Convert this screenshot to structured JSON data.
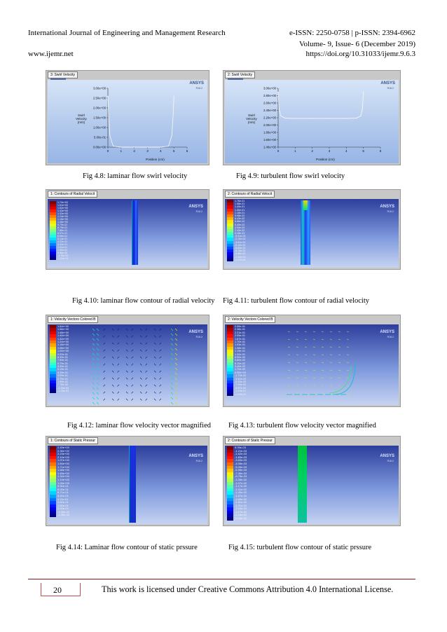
{
  "header": {
    "journal": "International Journal of Engineering and Management Research",
    "issn": "e-ISSN: 2250-0758  |  p-ISSN: 2394-6962",
    "volume": "Volume- 9, Issue- 6 (December 2019)",
    "website": "www.ijemr.net",
    "doi": "https://doi.org/10.31033/ijemr.9.6.3"
  },
  "footer": {
    "page_number": "20",
    "license": "This work is licensed under Creative Commons Attribution 4.0 International License."
  },
  "ansys": {
    "logo": "ANSYS",
    "version": "R16.2"
  },
  "colors": {
    "footer_rule": "#8b1a1a",
    "page_box": "#c0504d",
    "panel": "#a9c2ea"
  },
  "figures": {
    "fig48": {
      "caption": "Fig 4.8: laminar flow swirl velocity",
      "tab": "3: Swirl Velocity",
      "ylabel": [
        "Swirl",
        "Velocity",
        "(m/s)"
      ],
      "xlabel": "Position (cm)"
    },
    "fig49": {
      "caption": "Fig 4.9: turbulent flow swirl velocity",
      "tab": "2: Swirl Velocity",
      "ylabel": [
        "Swirl",
        "Velocity",
        "(m/s)"
      ],
      "xlabel": "Position (cm)"
    },
    "fig410": {
      "caption": "Fig 4.10: laminar flow contour of radial velocity",
      "tab": "1: Contours of Radial Velocit",
      "legend": [
        "1.70e+00",
        "1.61e+00",
        "1.52e+00",
        "1.43e+00",
        "1.33e+00",
        "1.24e+00",
        "1.15e+00",
        "1.06e+00",
        "9.70e-01",
        "8.79e-01",
        "7.88e-01",
        "6.97e-01",
        "6.06e-01",
        "5.14e-01",
        "4.23e-01",
        "3.32e-01",
        "2.41e-01",
        "1.50e-01",
        "5.86e-02",
        "-3.25e-02",
        "-1.24e-01"
      ]
    },
    "fig411": {
      "caption": "Fig 4.11: turbulent flow contour of radial velocity",
      "tab": "2: Contours of Radial Velocit",
      "legend": [
        "1.76e-01",
        "1.58e-01",
        "1.40e-01",
        "1.30e-01",
        "1.18e-01",
        "9.98e-02",
        "8.43e-02",
        "6.86e-02",
        "5.45e-02",
        "3.94e-02",
        "2.43e-02",
        "9.18e-03",
        "-5.91e-03",
        "-2.10e-02",
        "-3.61e-02",
        "-5.12e-02",
        "-6.64e-02",
        "-8.15e-02",
        "-9.66e-02",
        "-1.12e-01",
        "-1.27e-01"
      ]
    },
    "fig412": {
      "caption": "Fig 4.12: laminar flow velocity vector magnified",
      "tab": "1: Velocity Vectors Colored B",
      "legend": [
        "1.64e+00",
        "1.56e+00",
        "1.48e+00",
        "1.40e+00",
        "1.32e+00",
        "1.24e+00",
        "1.16e+00",
        "1.08e+00",
        "1.00e+00",
        "9.20e-01",
        "8.39e-01",
        "7.59e-01",
        "6.79e-01",
        "5.99e-01",
        "5.19e-01",
        "4.39e-01",
        "3.59e-01",
        "2.79e-01",
        "1.99e-01",
        "7.76e-02",
        "-2.33e-02",
        "-1.24e-01"
      ]
    },
    "fig413": {
      "caption": "Fig 4.13: turbulent flow velocity vector magnified",
      "tab": "2: Velocity Vectors Colored B",
      "legend": [
        "2.55e-01",
        "2.38e-01",
        "2.21e-01",
        "2.05e-01",
        "1.87e-01",
        "1.70e-01",
        "1.53e-01",
        "1.36e-01",
        "1.19e-01",
        "1.02e-01",
        "8.50e-02",
        "6.80e-02",
        "5.10e-02",
        "3.40e-02",
        "1.70e-02",
        "0.00e+00",
        "-1.70e-02",
        "-3.40e-02",
        "-5.15e-02",
        "-7.06e-02",
        "-9.57e-02",
        "-1.09e-01",
        "-1.29e-01"
      ]
    },
    "fig414": {
      "caption": "Fig 4.14: Laminar flow contour of static prssure",
      "tab": "1: Contours of Static Pressur",
      "legend": [
        "2.49e+00",
        "2.36e+00",
        "2.23e+00",
        "2.10e+00",
        "1.97e+00",
        "1.84e+00",
        "1.71e+00",
        "1.58e+00",
        "1.45e+00",
        "1.32e+00",
        "1.19e+00",
        "1.06e+00",
        "9.30e-01",
        "8.00e-01",
        "6.71e-01",
        "5.41e-01",
        "4.11e-01",
        "2.82e-01",
        "1.52e-01",
        "2.29e-02",
        "-1.06e-01",
        "-1.35e-02"
      ]
    },
    "fig415": {
      "caption": "Fig 4.15: turbulent flow contour of static prssure",
      "tab": "2: Contours of Static Pressur",
      "legend": [
        "5.05e-03",
        "-1.21e-03",
        "-1.62e-03",
        "-1.83e-03",
        "-3.83e-03",
        "-4.06e-03",
        "-5.26e-03",
        "-6.96e-03",
        "-7.36e-03",
        "-8.75e-03",
        "-1.05e-02",
        "-1.07e-02",
        "-1.17e-02",
        "-1.31e-02",
        "-1.49e-02",
        "-1.57e-02",
        "-1.69e-02",
        "-1.81e-02",
        "-1.91e-02",
        "-2.03e-02",
        "-2.17e-02",
        "-2.28e-02",
        "-2.43e-02"
      ]
    }
  },
  "chart_data": [
    {
      "type": "line",
      "title": "3: Swirl Velocity",
      "xlabel": "Position (cm)",
      "ylabel": "Swirl Velocity (m/s)",
      "xlim": [
        0,
        6
      ],
      "ylim": [
        0,
        3
      ],
      "xticks": [
        "0",
        "1",
        "2",
        "3",
        "4",
        "5",
        "6"
      ],
      "yticks": [
        "0.00e+00",
        "5.00e-01",
        "1.00e+00",
        "1.50e+00",
        "2.00e+00",
        "2.50e+00",
        "3.00e+00"
      ],
      "x": [
        0,
        0.05,
        0.15,
        0.4,
        1,
        2,
        3,
        4,
        4.6,
        4.85,
        4.95,
        5.0
      ],
      "y": [
        2.6,
        1.7,
        0.6,
        0.05,
        0,
        0,
        0,
        0,
        0.05,
        0.6,
        1.7,
        2.6
      ]
    },
    {
      "type": "line",
      "title": "2: Swirl Velocity",
      "xlabel": "Position (cm)",
      "ylabel": "Swirl Velocity (m/s)",
      "xlim": [
        0,
        6
      ],
      "ylim": [
        1.4,
        3.0
      ],
      "xticks": [
        "0",
        "1",
        "2",
        "3",
        "4",
        "5",
        "6"
      ],
      "yticks": [
        "1.40e+00",
        "1.60e+00",
        "1.80e+00",
        "2.00e+00",
        "2.20e+00",
        "2.40e+00",
        "2.60e+00",
        "2.80e+00",
        "3.00e+00"
      ],
      "x": [
        0,
        0.05,
        0.15,
        0.4,
        1,
        2,
        3,
        4,
        4.6,
        4.85,
        4.95,
        5.0
      ],
      "y": [
        2.9,
        2.45,
        2.25,
        2.19,
        2.18,
        2.18,
        2.18,
        2.18,
        2.19,
        2.25,
        2.45,
        2.9
      ]
    }
  ]
}
